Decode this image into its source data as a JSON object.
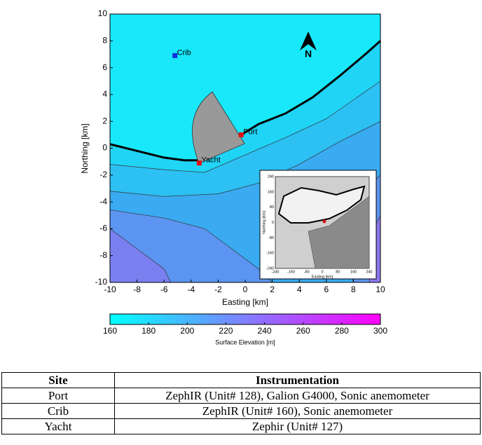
{
  "chart_data": {
    "type": "scatter",
    "xlabel": "Easting [km]",
    "ylabel": "Northing [km]",
    "xlim": [
      -10,
      10
    ],
    "ylim": [
      -10,
      10
    ],
    "xticks": [
      -10,
      -8,
      -6,
      -4,
      -2,
      0,
      2,
      4,
      6,
      8,
      10
    ],
    "yticks": [
      -10,
      -8,
      -6,
      -4,
      -2,
      0,
      2,
      4,
      6,
      8,
      10
    ],
    "series": [
      {
        "name": "Crib",
        "color": "#1030e0",
        "x": [
          -5.2
        ],
        "values": [
          6.9
        ]
      },
      {
        "name": "Port",
        "color": "#e01010",
        "x": [
          -0.3
        ],
        "values": [
          1.0
        ]
      },
      {
        "name": "Yacht",
        "color": "#e01010",
        "x": [
          -3.4
        ],
        "values": [
          -1.1
        ]
      }
    ],
    "north_label": "N",
    "colorbar": {
      "label": "Surface Elevation [m]",
      "lim": [
        160,
        300
      ],
      "ticks": [
        160,
        180,
        200,
        220,
        240,
        260,
        280,
        300
      ]
    },
    "inset": {
      "xlabel": "Easting [km]",
      "ylabel": "Northing [km]",
      "lim": [
        -240,
        240
      ],
      "ticks": [
        -240,
        -160,
        -80,
        0,
        80,
        160,
        240
      ]
    }
  },
  "table": {
    "header": [
      "Site",
      "Instrumentation"
    ],
    "rows": [
      [
        "Port",
        "ZephIR (Unit# 128), Galion G4000, Sonic anemometer"
      ],
      [
        "Crib",
        "ZephIR (Unit# 160), Sonic anemometer"
      ],
      [
        "Yacht",
        "Zephir (Unit# 127)"
      ]
    ]
  }
}
